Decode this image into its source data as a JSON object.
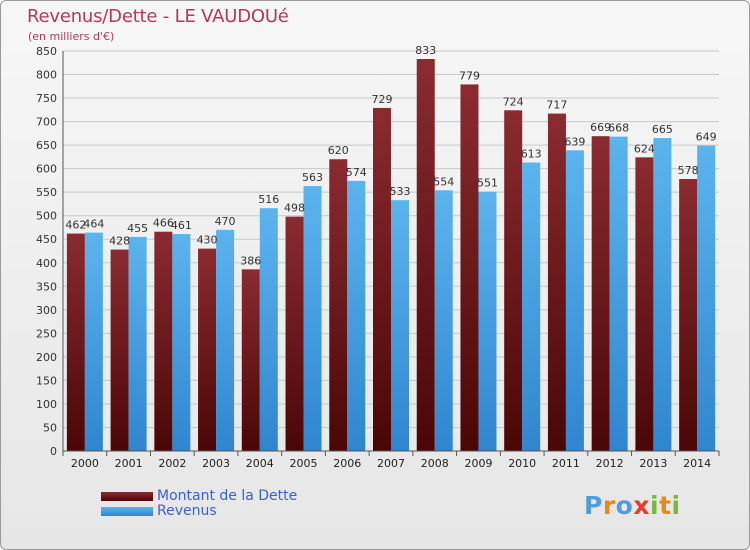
{
  "title": "Revenus/Dette - LE VAUDOUé",
  "subtitle": "(en milliers d'€)",
  "logo_text": "Proxiti",
  "colors": {
    "dette": "#7a1a1f",
    "revenus": "#4aa3e3",
    "title": "#b5385c"
  },
  "chart_data": {
    "type": "bar",
    "categories": [
      "2000",
      "2001",
      "2002",
      "2003",
      "2004",
      "2005",
      "2006",
      "2007",
      "2008",
      "2009",
      "2010",
      "2011",
      "2012",
      "2013",
      "2014"
    ],
    "series": [
      {
        "name": "Montant de la Dette",
        "values": [
          462,
          428,
          466,
          430,
          386,
          498,
          620,
          729,
          833,
          779,
          724,
          717,
          669,
          624,
          578
        ]
      },
      {
        "name": "Revenus",
        "values": [
          464,
          455,
          461,
          470,
          516,
          563,
          574,
          533,
          554,
          551,
          613,
          639,
          668,
          665,
          649
        ]
      }
    ],
    "ylim": [
      0,
      850
    ],
    "yticks": [
      0,
      50,
      100,
      150,
      200,
      250,
      300,
      350,
      400,
      450,
      500,
      550,
      600,
      650,
      700,
      750,
      800,
      850
    ],
    "grid": true,
    "legend": "bottom-left"
  }
}
